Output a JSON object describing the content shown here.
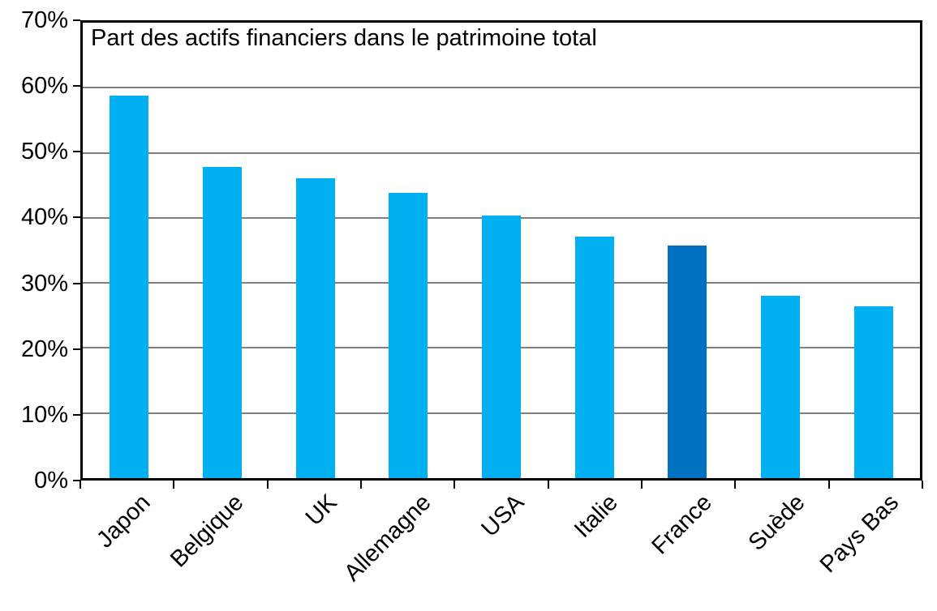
{
  "chart_data": {
    "type": "bar",
    "title": "Part des actifs financiers dans le patrimoine total",
    "categories": [
      "Japon",
      "Belgique",
      "UK",
      "Allemagne",
      "USA",
      "Italie",
      "France",
      "Suède",
      "Pays Bas"
    ],
    "values": [
      58.8,
      47.8,
      46.1,
      43.9,
      40.4,
      37.1,
      35.7,
      28.0,
      26.4
    ],
    "highlight_category": "France",
    "xlabel": "",
    "ylabel": "",
    "ylim": [
      0,
      70
    ],
    "ytick_step": 10,
    "ytick_labels": [
      "0%",
      "10%",
      "20%",
      "30%",
      "40%",
      "50%",
      "60%",
      "70%"
    ],
    "grid": true,
    "legend": false,
    "colors": {
      "bar": "#00B0F0",
      "highlight": "#0070C0",
      "gridline": "#808080",
      "axis": "#000000",
      "background": "#FFFFFF",
      "text": "#000000"
    }
  }
}
